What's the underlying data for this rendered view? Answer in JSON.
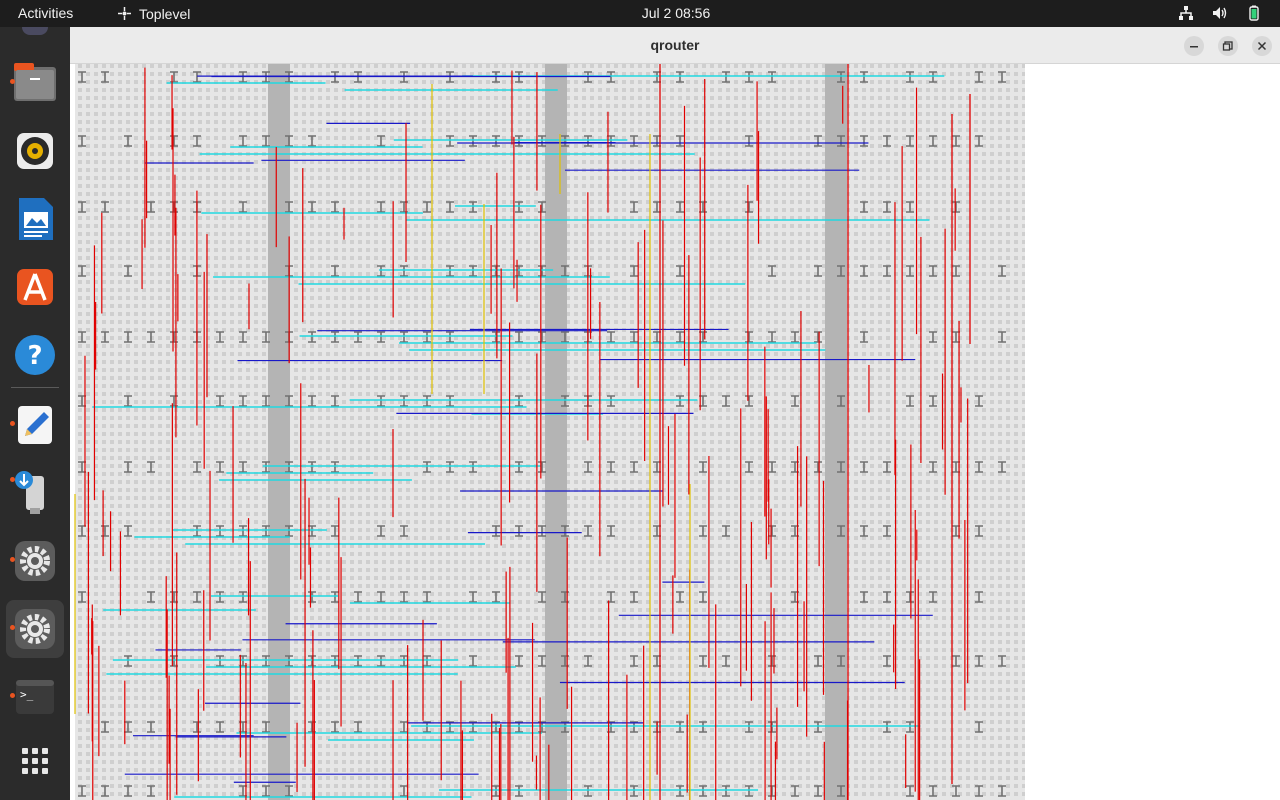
{
  "topbar": {
    "activities": "Activities",
    "app_name": "Toplevel",
    "clock": "Jul 2  08:56"
  },
  "dock": {
    "items": [
      {
        "name": "files",
        "icon": "files-icon",
        "running": true
      },
      {
        "name": "rhythmbox",
        "icon": "rhythmbox-icon",
        "running": false
      },
      {
        "name": "libreoffice-impress",
        "icon": "impress-icon",
        "running": false
      },
      {
        "name": "app-center",
        "icon": "app-center-icon",
        "running": false
      },
      {
        "name": "help",
        "icon": "help-icon",
        "running": false
      },
      {
        "name": "text-editor",
        "icon": "text-editor-icon",
        "running": true
      },
      {
        "name": "usb-installer",
        "icon": "usb-installer-icon",
        "running": true
      },
      {
        "name": "settings-1",
        "icon": "settings-icon",
        "running": true
      },
      {
        "name": "settings-2",
        "icon": "settings-icon",
        "running": true
      },
      {
        "name": "terminal",
        "icon": "terminal-icon",
        "running": true
      },
      {
        "name": "show-apps",
        "icon": "grid-icon",
        "running": false
      }
    ]
  },
  "window": {
    "title": "qrouter"
  },
  "colors": {
    "route_red": "#e00000",
    "route_blue": "#1818c8",
    "route_cyan": "#20d8e0",
    "route_yellow": "#e0c000",
    "cell_gray": "#b4b4b4",
    "grid_bg": "#d8d8d8"
  }
}
